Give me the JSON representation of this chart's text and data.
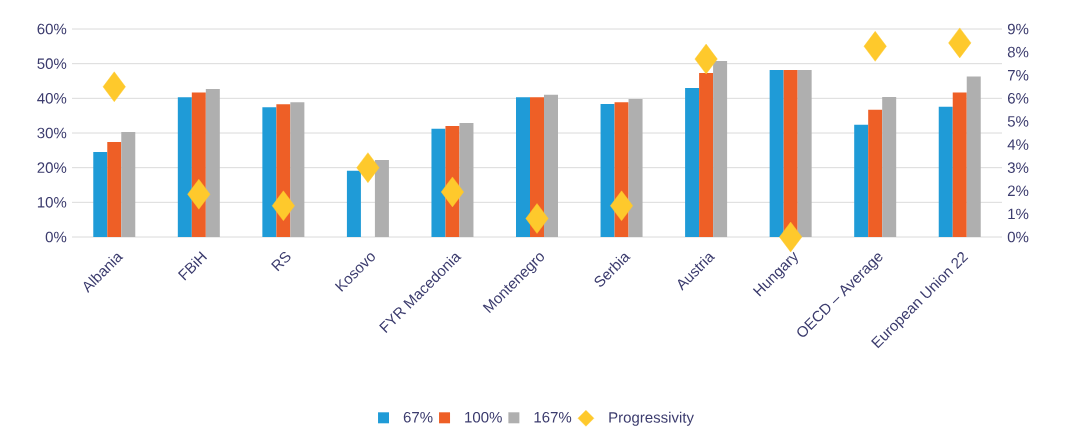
{
  "chart_data": {
    "type": "bar",
    "categories": [
      "Albania",
      "FBiH",
      "RS",
      "Kosovo",
      "FYR Macedonia",
      "Montenegro",
      "Serbia",
      "Austria",
      "Hungary",
      "OECD – Average",
      "European Union 22"
    ],
    "series": [
      {
        "name": "67%",
        "color": "#1f9bd7",
        "values": [
          24.5,
          40.3,
          37.4,
          19.1,
          31.2,
          40.3,
          38.4,
          43.0,
          48.2,
          32.4,
          37.6
        ]
      },
      {
        "name": "100%",
        "color": "#ee5f26",
        "values": [
          27.4,
          41.7,
          38.3,
          null,
          32.0,
          40.3,
          38.9,
          47.3,
          48.2,
          36.7,
          41.7
        ]
      },
      {
        "name": "167%",
        "color": "#afafaf",
        "values": [
          30.3,
          42.7,
          38.9,
          22.2,
          32.9,
          41.0,
          39.8,
          50.8,
          48.2,
          40.4,
          46.3
        ]
      },
      {
        "name": "Progressivity",
        "type": "scatter",
        "axis": "y2",
        "marker": "diamond",
        "color": "#fec92c",
        "values": [
          6.5,
          1.85,
          1.35,
          3.0,
          1.95,
          0.8,
          1.35,
          7.7,
          0,
          8.25,
          8.4
        ]
      }
    ],
    "ylim": [
      0,
      60
    ],
    "yticks": [
      {
        "value": 0,
        "label": "0%"
      },
      {
        "value": 10,
        "label": "10%"
      },
      {
        "value": 20,
        "label": "20%"
      },
      {
        "value": 30,
        "label": "30%"
      },
      {
        "value": 40,
        "label": "40%"
      },
      {
        "value": 50,
        "label": "50%"
      },
      {
        "value": 60,
        "label": "60%"
      }
    ],
    "y2lim": [
      0,
      9
    ],
    "y2ticks": [
      {
        "value": 0,
        "label": "0%"
      },
      {
        "value": 1,
        "label": "1%"
      },
      {
        "value": 2,
        "label": "2%"
      },
      {
        "value": 3,
        "label": "3%"
      },
      {
        "value": 4,
        "label": "4%"
      },
      {
        "value": 5,
        "label": "5%"
      },
      {
        "value": 6,
        "label": "6%"
      },
      {
        "value": 7,
        "label": "7%"
      },
      {
        "value": 8,
        "label": "8%"
      },
      {
        "value": 9,
        "label": "9%"
      }
    ],
    "grid": "y",
    "legend": "bottom"
  }
}
